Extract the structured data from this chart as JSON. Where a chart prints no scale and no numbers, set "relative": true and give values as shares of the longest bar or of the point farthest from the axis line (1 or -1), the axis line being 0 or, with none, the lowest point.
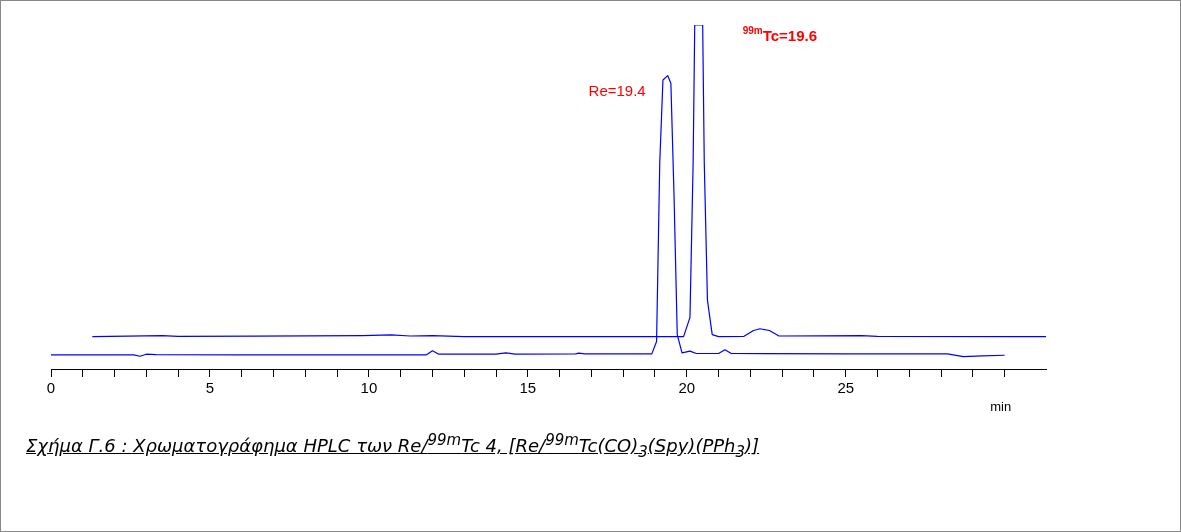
{
  "chart_data": {
    "type": "line",
    "relative": true,
    "xlabel": "min",
    "xlim": [
      0,
      31.3
    ],
    "xticks": [
      0,
      {
        "value": 1,
        "label": null
      },
      {
        "value": 2,
        "label": null
      },
      {
        "value": 3,
        "label": null
      },
      {
        "value": 4,
        "label": null
      },
      5,
      {
        "value": 6,
        "label": null
      },
      {
        "value": 7,
        "label": null
      },
      {
        "value": 8,
        "label": null
      },
      {
        "value": 9,
        "label": null
      },
      10,
      {
        "value": 11,
        "label": null
      },
      {
        "value": 12,
        "label": null
      },
      {
        "value": 13,
        "label": null
      },
      {
        "value": 14,
        "label": null
      },
      15,
      {
        "value": 16,
        "label": null
      },
      {
        "value": 17,
        "label": null
      },
      {
        "value": 18,
        "label": null
      },
      {
        "value": 19,
        "label": null
      },
      20,
      {
        "value": 21,
        "label": null
      },
      {
        "value": 22,
        "label": null
      },
      {
        "value": 23,
        "label": null
      },
      {
        "value": 24,
        "label": null
      },
      25,
      {
        "value": 26,
        "label": null
      },
      {
        "value": 27,
        "label": null
      },
      {
        "value": 28,
        "label": null
      },
      {
        "value": 29,
        "label": null
      },
      {
        "value": 30,
        "label": null
      }
    ],
    "grid": false,
    "legend": false,
    "marker": "none",
    "line_style": "solid",
    "series": [
      {
        "color": "#0000ff",
        "x": [
          0,
          2.6,
          2.8,
          3.0,
          3.3,
          6,
          11.8,
          12.0,
          12.2,
          14.0,
          14.3,
          14.6,
          16.5,
          16.6,
          16.8,
          18.9,
          19.05,
          19.15,
          19.25,
          19.4,
          19.5,
          19.6,
          19.7,
          19.85,
          20.1,
          20.3,
          21.0,
          21.2,
          21.4,
          25,
          28.2,
          28.7,
          29.3,
          30
        ],
        "values": [
          0.041,
          0.041,
          0.037,
          0.043,
          0.042,
          0.041,
          0.041,
          0.053,
          0.043,
          0.043,
          0.047,
          0.043,
          0.044,
          0.046,
          0.044,
          0.044,
          0.08,
          0.6,
          0.84,
          0.853,
          0.83,
          0.5,
          0.1,
          0.047,
          0.052,
          0.045,
          0.045,
          0.056,
          0.045,
          0.044,
          0.044,
          0.036,
          0.038,
          0.04
        ]
      },
      {
        "color": "#0000ff",
        "x": [
          1.3,
          3.5,
          4,
          9.8,
          10.7,
          11.3,
          12,
          13,
          19.9,
          20.1,
          20.2,
          20.25,
          20.5,
          20.55,
          20.65,
          20.8,
          21.0,
          21.8,
          22.1,
          22.3,
          22.6,
          22.9,
          25.5,
          26,
          31.3
        ],
        "values": [
          0.094,
          0.097,
          0.095,
          0.097,
          0.099,
          0.096,
          0.097,
          0.094,
          0.094,
          0.15,
          0.6,
          1,
          1,
          0.6,
          0.2,
          0.1,
          0.094,
          0.095,
          0.112,
          0.117,
          0.112,
          0.096,
          0.097,
          0.095,
          0.094
        ]
      }
    ],
    "annotations": [
      {
        "text": "Re=19.4",
        "x": 19.4,
        "y": 0.853
      },
      {
        "text": "$^{99m}$Tc=19.6",
        "x": 20.5,
        "y": 1
      },
      "Σχήμα Γ.6 : Χρωματογράφημα HPLC των Re/$^{99m}$Tc 4,  [Re/$^{99m}$Tc(CO)$_{3}$(Spy)(PPh$_{3}$)]"
    ]
  }
}
